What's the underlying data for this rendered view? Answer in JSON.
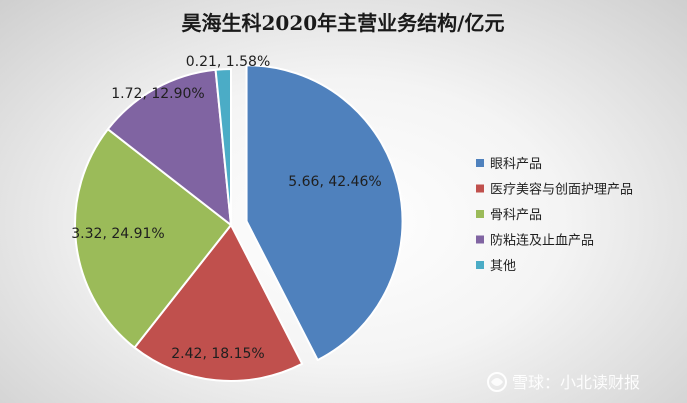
{
  "chart_data": {
    "type": "pie",
    "title": "昊海生科2020年主营业务结构/亿元",
    "unit": "亿元",
    "categories": [
      "眼科产品",
      "医疗美容与创面护理产品",
      "骨科产品",
      "防粘连及止血产品",
      "其他"
    ],
    "values": [
      5.66,
      2.42,
      3.32,
      1.72,
      0.21
    ],
    "percentages": [
      42.46,
      18.15,
      24.91,
      12.9,
      1.58
    ],
    "data_labels": [
      "5.66, 42.46%",
      "2.42, 18.15%",
      "3.32, 24.91%",
      "1.72, 12.90%",
      "0.21, 1.58%"
    ],
    "colors": [
      "#4f81bd",
      "#c0504d",
      "#9bbb59",
      "#8064a2",
      "#4bacc6"
    ],
    "exploded_slice": "眼科产品",
    "legend_position": "right",
    "grid": false
  },
  "watermark": {
    "text": "雪球：小北读财报",
    "icon": "snowball-logo-icon"
  }
}
